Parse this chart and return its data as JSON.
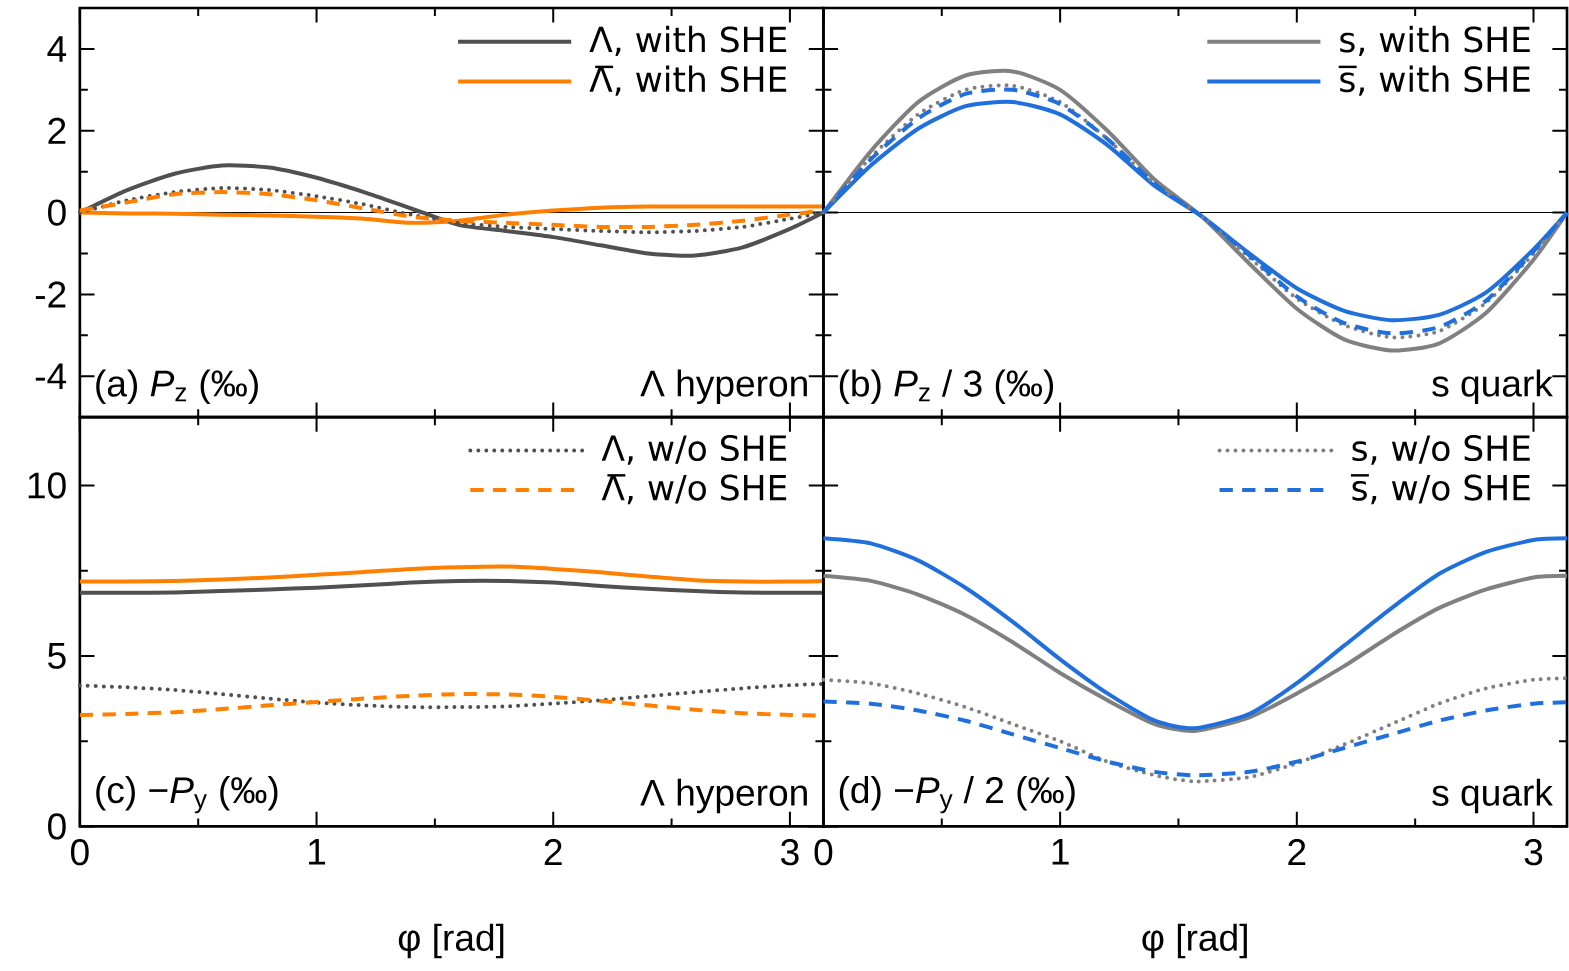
{
  "chart_data": [
    {
      "type": "line",
      "x": [
        0,
        0.2,
        0.4,
        0.6,
        0.8,
        1.0,
        1.2,
        1.4,
        1.6,
        1.8,
        2.0,
        2.2,
        2.4,
        2.6,
        2.8,
        3.0,
        3.1416
      ],
      "xlim": [
        0,
        3.1416
      ],
      "ylim": [
        -5,
        5
      ],
      "xticks": [
        0,
        {
          "value": 0.5,
          "label": null
        },
        1,
        {
          "value": 1.5,
          "label": null
        },
        2,
        {
          "value": 2.5,
          "label": null
        },
        3
      ],
      "yticks": [
        -4,
        {
          "value": -3,
          "label": null
        },
        -2,
        {
          "value": -1,
          "label": null
        },
        0,
        {
          "value": 1,
          "label": null
        },
        2,
        {
          "value": 3,
          "label": null
        },
        4
      ],
      "tick_labels": "y",
      "legend": "top right",
      "ref_lines": [
        {
          "axis": "y",
          "value": 0,
          "color": "#000000"
        }
      ],
      "annotations": [
        "(a) *P*$_{z}$ (‰)",
        "Λ hyperon"
      ],
      "series": [
        {
          "name": "Λ, with SHE",
          "color": "#505050",
          "line_style": "solid",
          "values": [
            0,
            0.55,
            0.95,
            1.15,
            1.1,
            0.85,
            0.5,
            0.1,
            -0.3,
            -0.45,
            -0.6,
            -0.8,
            -1.0,
            -1.05,
            -0.85,
            -0.4,
            0
          ]
        },
        {
          "name": "Λ̅, with SHE",
          "color": "#ff8000",
          "line_style": "solid",
          "values": [
            0,
            -0.02,
            -0.03,
            -0.05,
            -0.07,
            -0.1,
            -0.15,
            -0.25,
            -0.2,
            -0.05,
            0.05,
            0.12,
            0.15,
            0.15,
            0.15,
            0.15,
            0.15
          ]
        },
        {
          "color": "#505050",
          "line_style": "dotted",
          "values": [
            0,
            0.3,
            0.5,
            0.6,
            0.55,
            0.4,
            0.2,
            -0.05,
            -0.25,
            -0.35,
            -0.4,
            -0.45,
            -0.48,
            -0.45,
            -0.35,
            -0.15,
            0
          ]
        },
        {
          "color": "#ff8000",
          "line_style": "dashed",
          "values": [
            0.05,
            0.25,
            0.45,
            0.5,
            0.45,
            0.3,
            0.1,
            -0.1,
            -0.2,
            -0.25,
            -0.3,
            -0.35,
            -0.35,
            -0.3,
            -0.2,
            -0.05,
            0.05
          ]
        }
      ]
    },
    {
      "type": "line",
      "x": [
        0,
        0.2,
        0.4,
        0.6,
        0.8,
        1.0,
        1.2,
        1.4,
        1.6,
        1.8,
        2.0,
        2.2,
        2.4,
        2.6,
        2.8,
        3.0,
        3.1416
      ],
      "xlim": [
        0,
        3.1416
      ],
      "ylim": [
        -5,
        5
      ],
      "xticks": [
        0,
        {
          "value": 0.5,
          "label": null
        },
        1,
        {
          "value": 1.5,
          "label": null
        },
        2,
        {
          "value": 2.5,
          "label": null
        },
        3
      ],
      "yticks": [
        -4,
        {
          "value": -3,
          "label": null
        },
        -2,
        {
          "value": -1,
          "label": null
        },
        0,
        {
          "value": 1,
          "label": null
        },
        2,
        {
          "value": 3,
          "label": null
        },
        4
      ],
      "tick_labels": false,
      "legend": "top right",
      "ref_lines": [
        {
          "axis": "y",
          "value": 0,
          "color": "#000000"
        }
      ],
      "annotations": [
        "(b) *P*$_{z}$ / 3 (‰)",
        "s quark"
      ],
      "series": [
        {
          "name": "s, with SHE",
          "color": "#808080",
          "line_style": "solid",
          "values": [
            0,
            1.5,
            2.7,
            3.35,
            3.45,
            3.0,
            2.0,
            0.8,
            -0.1,
            -1.25,
            -2.35,
            -3.1,
            -3.37,
            -3.2,
            -2.45,
            -1.15,
            0
          ]
        },
        {
          "name": "s̅, with SHE",
          "color": "#1f6fdc",
          "line_style": "solid",
          "values": [
            0,
            1.15,
            2.05,
            2.6,
            2.7,
            2.4,
            1.65,
            0.65,
            -0.1,
            -1.0,
            -1.85,
            -2.4,
            -2.63,
            -2.5,
            -1.95,
            -0.9,
            0
          ]
        },
        {
          "color": "#808080",
          "line_style": "dotted",
          "values": [
            0,
            1.35,
            2.4,
            3.0,
            3.1,
            2.7,
            1.8,
            0.7,
            -0.1,
            -1.1,
            -2.1,
            -2.75,
            -3.05,
            -2.9,
            -2.2,
            -1.0,
            0
          ]
        },
        {
          "color": "#1f6fdc",
          "line_style": "dashed",
          "values": [
            0,
            1.3,
            2.3,
            2.9,
            3.0,
            2.65,
            1.8,
            0.7,
            -0.1,
            -1.05,
            -2.05,
            -2.7,
            -2.95,
            -2.8,
            -2.15,
            -0.95,
            0
          ]
        }
      ]
    },
    {
      "type": "line",
      "x": [
        0,
        0.2,
        0.4,
        0.6,
        0.8,
        1.0,
        1.2,
        1.4,
        1.6,
        1.8,
        2.0,
        2.2,
        2.4,
        2.6,
        2.8,
        3.0,
        3.1416
      ],
      "xlim": [
        0,
        3.1416
      ],
      "ylim": [
        0,
        12
      ],
      "xticks": [
        0,
        {
          "value": 0.5,
          "label": null
        },
        1,
        {
          "value": 1.5,
          "label": null
        },
        2,
        {
          "value": 2.5,
          "label": null
        },
        3
      ],
      "yticks": [
        0,
        {
          "value": 2.5,
          "label": null
        },
        5,
        {
          "value": 7.5,
          "label": null
        },
        10
      ],
      "xlabel": "φ [rad]",
      "legend": "top right",
      "annotations": [
        "(c) −*P*$_{y}$ (‰)",
        "Λ hyperon"
      ],
      "series": [
        {
          "color": "#505050",
          "line_style": "solid",
          "values": [
            6.85,
            6.85,
            6.86,
            6.9,
            6.95,
            7.0,
            7.07,
            7.15,
            7.2,
            7.2,
            7.15,
            7.05,
            6.97,
            6.9,
            6.86,
            6.85,
            6.85
          ]
        },
        {
          "color": "#ff8000",
          "line_style": "solid",
          "values": [
            7.18,
            7.18,
            7.2,
            7.24,
            7.3,
            7.38,
            7.46,
            7.55,
            7.6,
            7.62,
            7.55,
            7.45,
            7.33,
            7.22,
            7.18,
            7.18,
            7.2
          ]
        },
        {
          "name": "Λ, w/o SHE",
          "color": "#505050",
          "line_style": "dotted",
          "values": [
            4.13,
            4.08,
            4.0,
            3.88,
            3.75,
            3.63,
            3.55,
            3.5,
            3.5,
            3.52,
            3.6,
            3.7,
            3.82,
            3.94,
            4.05,
            4.14,
            4.18
          ]
        },
        {
          "name": "Λ̅, w/o SHE",
          "color": "#ff8000",
          "line_style": "dashed",
          "values": [
            3.27,
            3.3,
            3.35,
            3.44,
            3.55,
            3.65,
            3.75,
            3.83,
            3.88,
            3.87,
            3.8,
            3.68,
            3.55,
            3.42,
            3.32,
            3.27,
            3.25
          ]
        }
      ]
    },
    {
      "type": "line",
      "x": [
        0,
        0.2,
        0.4,
        0.6,
        0.8,
        1.0,
        1.2,
        1.4,
        1.57,
        1.8,
        2.0,
        2.2,
        2.4,
        2.6,
        2.8,
        3.0,
        3.1416
      ],
      "xlim": [
        0,
        3.1416
      ],
      "ylim": [
        0,
        12
      ],
      "xticks": [
        0,
        {
          "value": 0.5,
          "label": null
        },
        1,
        {
          "value": 1.5,
          "label": null
        },
        2,
        {
          "value": 2.5,
          "label": null
        },
        3
      ],
      "yticks": [
        0,
        {
          "value": 2.5,
          "label": null
        },
        5,
        {
          "value": 7.5,
          "label": null
        },
        10
      ],
      "tick_labels": "x",
      "xlabel": "φ [rad]",
      "legend": "top right",
      "annotations": [
        "(d) −*P*$_{y}$ / 2 (‰)",
        "s quark"
      ],
      "series": [
        {
          "color": "#808080",
          "line_style": "solid",
          "values": [
            7.35,
            7.2,
            6.8,
            6.2,
            5.4,
            4.5,
            3.7,
            3.0,
            2.8,
            3.2,
            3.9,
            4.7,
            5.6,
            6.4,
            6.95,
            7.3,
            7.35
          ]
        },
        {
          "color": "#1f6fdc",
          "line_style": "solid",
          "values": [
            8.45,
            8.3,
            7.8,
            7.0,
            6.0,
            4.9,
            3.9,
            3.1,
            2.88,
            3.3,
            4.2,
            5.3,
            6.4,
            7.4,
            8.05,
            8.4,
            8.45
          ]
        },
        {
          "name": "s, w/o SHE",
          "color": "#808080",
          "line_style": "dotted",
          "values": [
            4.3,
            4.2,
            3.9,
            3.5,
            3.0,
            2.5,
            1.9,
            1.5,
            1.32,
            1.45,
            1.85,
            2.4,
            3.0,
            3.6,
            4.05,
            4.3,
            4.35
          ]
        },
        {
          "name": "s̅, w/o SHE",
          "color": "#1f6fdc",
          "line_style": "dashed",
          "values": [
            3.66,
            3.6,
            3.4,
            3.1,
            2.7,
            2.3,
            1.9,
            1.6,
            1.5,
            1.6,
            1.9,
            2.3,
            2.7,
            3.1,
            3.4,
            3.6,
            3.64
          ]
        }
      ]
    }
  ]
}
